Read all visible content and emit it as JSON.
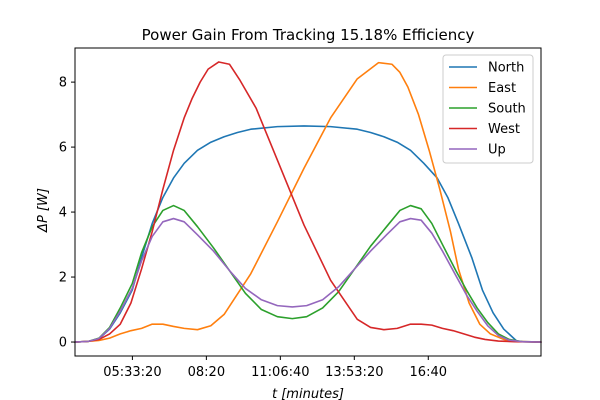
{
  "chart_data": {
    "type": "line",
    "title": "Power Gain From Tracking 15.18% Efficiency",
    "xlabel": "t [minutes]",
    "ylabel": "ΔP [W]",
    "xlim": [
      3.4,
      20.9
    ],
    "ylim": [
      -0.43,
      9.05
    ],
    "x_ticks": [
      {
        "value": 5.5556,
        "label": "05:33:20"
      },
      {
        "value": 8.3333,
        "label": "08:20"
      },
      {
        "value": 11.1111,
        "label": "11:06:40"
      },
      {
        "value": 13.8889,
        "label": "13:53:20"
      },
      {
        "value": 16.6667,
        "label": "16:40"
      }
    ],
    "y_ticks": [
      0,
      2,
      4,
      6,
      8
    ],
    "grid": false,
    "legend_position": "top-right",
    "series": [
      {
        "name": "North",
        "color": "#1f77b4",
        "x": [
          3.4,
          3.9,
          4.3,
          4.7,
          5.1,
          5.55,
          5.9,
          6.3,
          6.7,
          7.1,
          7.5,
          8.0,
          8.5,
          9.0,
          9.5,
          10.0,
          11.0,
          12.0,
          13.0,
          14.0,
          14.5,
          15.0,
          15.5,
          16.0,
          16.5,
          17.0,
          17.4,
          17.8,
          18.3,
          18.7,
          19.1,
          19.5,
          20.0,
          20.9
        ],
        "y": [
          0,
          0.02,
          0.1,
          0.4,
          0.9,
          1.6,
          2.6,
          3.65,
          4.45,
          5.05,
          5.5,
          5.9,
          6.15,
          6.32,
          6.45,
          6.55,
          6.63,
          6.65,
          6.63,
          6.55,
          6.45,
          6.32,
          6.15,
          5.9,
          5.5,
          5.05,
          4.45,
          3.65,
          2.6,
          1.6,
          0.9,
          0.4,
          0.02,
          0
        ]
      },
      {
        "name": "East",
        "color": "#ff7f0e",
        "x": [
          3.4,
          3.9,
          4.3,
          4.7,
          5.1,
          5.5,
          5.9,
          6.3,
          6.7,
          7.1,
          7.5,
          8.0,
          8.5,
          9.0,
          10.0,
          11.0,
          12.0,
          13.0,
          14.0,
          14.8,
          15.3,
          15.6,
          15.9,
          16.3,
          16.7,
          17.1,
          17.5,
          17.8,
          18.2,
          18.6,
          19.0,
          19.5,
          20.0,
          20.9
        ],
        "y": [
          0,
          0.02,
          0.05,
          0.12,
          0.25,
          0.35,
          0.42,
          0.55,
          0.55,
          0.48,
          0.42,
          0.38,
          0.5,
          0.85,
          2.1,
          3.7,
          5.35,
          6.9,
          8.1,
          8.6,
          8.55,
          8.3,
          7.85,
          7.0,
          5.9,
          4.7,
          3.4,
          2.25,
          1.2,
          0.55,
          0.25,
          0.08,
          0.02,
          0
        ]
      },
      {
        "name": "South",
        "color": "#2ca02c",
        "x": [
          3.4,
          3.9,
          4.3,
          4.7,
          5.1,
          5.55,
          5.9,
          6.3,
          6.7,
          7.1,
          7.5,
          8.0,
          8.6,
          9.2,
          9.8,
          10.4,
          11.0,
          11.56,
          12.1,
          12.7,
          13.3,
          13.9,
          14.5,
          15.1,
          15.6,
          16.0,
          16.4,
          16.8,
          17.2,
          17.7,
          18.1,
          18.5,
          18.9,
          19.3,
          19.7,
          20.2,
          20.9
        ],
        "y": [
          0,
          0.02,
          0.12,
          0.45,
          1.05,
          1.8,
          2.75,
          3.55,
          4.05,
          4.2,
          4.05,
          3.55,
          2.9,
          2.2,
          1.5,
          1.0,
          0.78,
          0.72,
          0.78,
          1.05,
          1.55,
          2.25,
          2.95,
          3.55,
          4.05,
          4.2,
          4.1,
          3.65,
          3.0,
          2.2,
          1.6,
          1.05,
          0.6,
          0.25,
          0.08,
          0.01,
          0
        ]
      },
      {
        "name": "West",
        "color": "#d62728",
        "x": [
          3.4,
          3.9,
          4.3,
          4.7,
          5.1,
          5.5,
          5.9,
          6.3,
          6.7,
          7.1,
          7.5,
          7.8,
          8.1,
          8.4,
          8.8,
          9.2,
          9.6,
          10.2,
          10.8,
          11.4,
          12.0,
          13.0,
          14.0,
          14.5,
          15.0,
          15.5,
          16.0,
          16.4,
          16.8,
          17.2,
          17.6,
          18.0,
          18.4,
          18.8,
          19.3,
          19.9,
          20.9
        ],
        "y": [
          0,
          0.02,
          0.08,
          0.25,
          0.55,
          1.2,
          2.25,
          3.4,
          4.7,
          5.9,
          6.9,
          7.5,
          8.0,
          8.4,
          8.62,
          8.55,
          8.05,
          7.2,
          6.0,
          4.8,
          3.6,
          1.9,
          0.7,
          0.45,
          0.38,
          0.42,
          0.55,
          0.55,
          0.52,
          0.42,
          0.35,
          0.25,
          0.15,
          0.08,
          0.03,
          0.01,
          0
        ]
      },
      {
        "name": "Up",
        "color": "#9467bd",
        "x": [
          3.4,
          3.9,
          4.3,
          4.7,
          5.1,
          5.55,
          5.9,
          6.3,
          6.7,
          7.1,
          7.5,
          8.0,
          8.6,
          9.2,
          9.8,
          10.4,
          11.0,
          11.56,
          12.1,
          12.7,
          13.3,
          13.9,
          14.5,
          15.1,
          15.6,
          16.0,
          16.4,
          16.8,
          17.2,
          17.7,
          18.1,
          18.5,
          18.9,
          19.3,
          19.7,
          20.2,
          20.9
        ],
        "y": [
          0,
          0.02,
          0.11,
          0.42,
          0.95,
          1.65,
          2.5,
          3.25,
          3.7,
          3.8,
          3.7,
          3.3,
          2.8,
          2.2,
          1.65,
          1.3,
          1.12,
          1.08,
          1.12,
          1.3,
          1.7,
          2.25,
          2.8,
          3.3,
          3.7,
          3.8,
          3.75,
          3.35,
          2.8,
          2.05,
          1.45,
          0.95,
          0.5,
          0.2,
          0.06,
          0.01,
          0
        ]
      }
    ]
  }
}
